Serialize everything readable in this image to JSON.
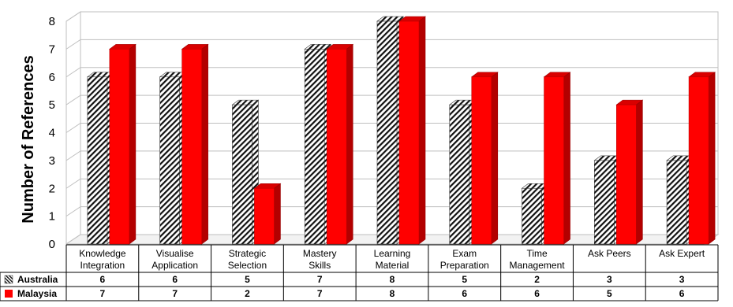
{
  "chart_data": {
    "type": "bar",
    "ylabel": "Number of References",
    "ylim": [
      0,
      8
    ],
    "yticks": [
      0,
      1,
      2,
      3,
      4,
      5,
      6,
      7,
      8
    ],
    "grid": true,
    "legend": "table-left",
    "categories": [
      [
        "Knowledge",
        "Integration"
      ],
      [
        "Visualise",
        "Application"
      ],
      [
        "Strategic",
        "Selection"
      ],
      [
        "Mastery",
        "Skills"
      ],
      [
        "Learning",
        "Material"
      ],
      [
        "Exam",
        "Preparation"
      ],
      [
        "Time",
        "Management"
      ],
      [
        "Ask Peers"
      ],
      [
        "Ask Expert"
      ]
    ],
    "series": [
      {
        "name": "Australia",
        "values": [
          6,
          6,
          5,
          7,
          8,
          5,
          2,
          3,
          3
        ],
        "pattern": "hatched",
        "color": "#000000"
      },
      {
        "name": "Malaysia",
        "values": [
          7,
          7,
          2,
          7,
          8,
          6,
          6,
          5,
          6
        ],
        "color": "#ff0000"
      }
    ]
  }
}
